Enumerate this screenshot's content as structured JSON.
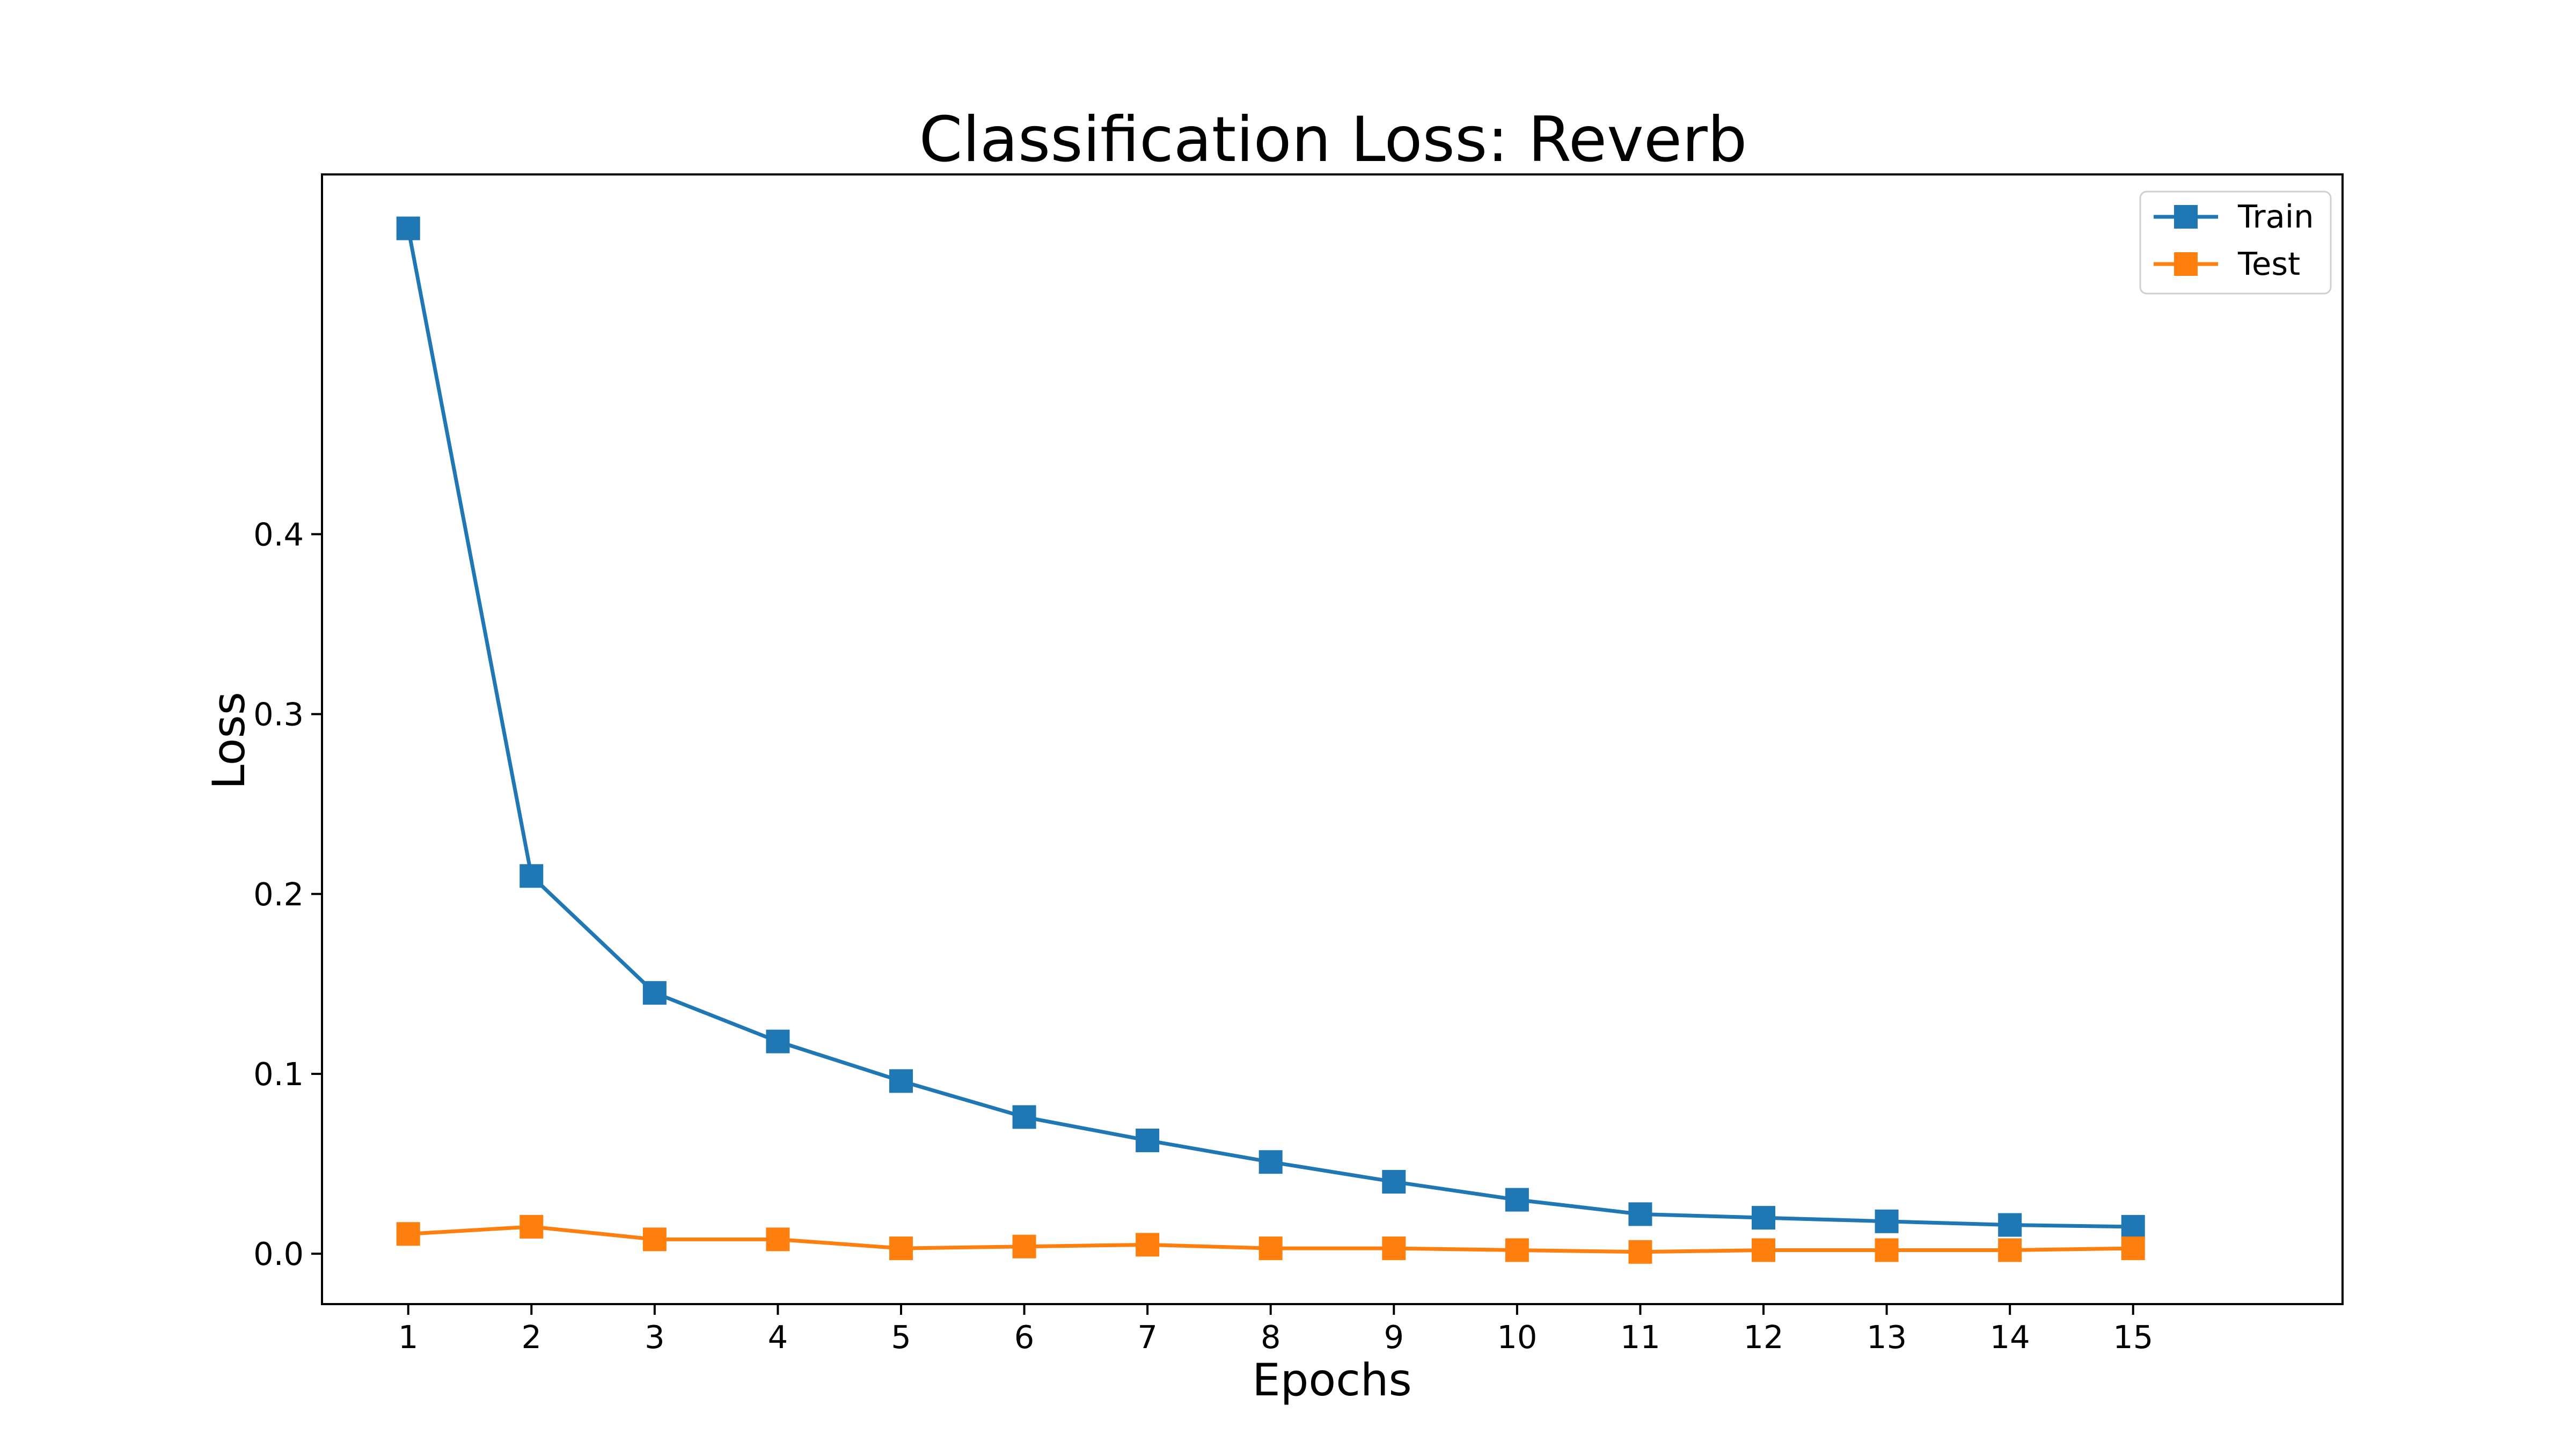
{
  "chart_data": {
    "type": "line",
    "title": "Classification Loss: Reverb",
    "xlabel": "Epochs",
    "ylabel": "Loss",
    "x": [
      1,
      2,
      3,
      4,
      5,
      6,
      7,
      8,
      9,
      10,
      11,
      12,
      13,
      14,
      15
    ],
    "xticks": [
      "1",
      "2",
      "3",
      "4",
      "5",
      "6",
      "7",
      "8",
      "9",
      "10",
      "11",
      "12",
      "13",
      "14",
      "15"
    ],
    "yticks": [
      "0.0",
      "0.1",
      "0.2",
      "0.3",
      "0.4"
    ],
    "ytick_values": [
      0.0,
      0.1,
      0.2,
      0.3,
      0.4
    ],
    "xlim": [
      0.3,
      16.7
    ],
    "ylim": [
      -0.028,
      0.6
    ],
    "grid": false,
    "legend_position": "top-right",
    "marker": "square",
    "series": [
      {
        "name": "Train",
        "color": "#1f77b4",
        "values": [
          0.57,
          0.21,
          0.145,
          0.118,
          0.096,
          0.076,
          0.063,
          0.051,
          0.04,
          0.03,
          0.022,
          0.02,
          0.018,
          0.016,
          0.015
        ]
      },
      {
        "name": "Test",
        "color": "#ff7f0e",
        "values": [
          0.011,
          0.015,
          0.008,
          0.008,
          0.003,
          0.004,
          0.005,
          0.003,
          0.003,
          0.002,
          0.001,
          0.002,
          0.002,
          0.002,
          0.003
        ]
      }
    ]
  }
}
